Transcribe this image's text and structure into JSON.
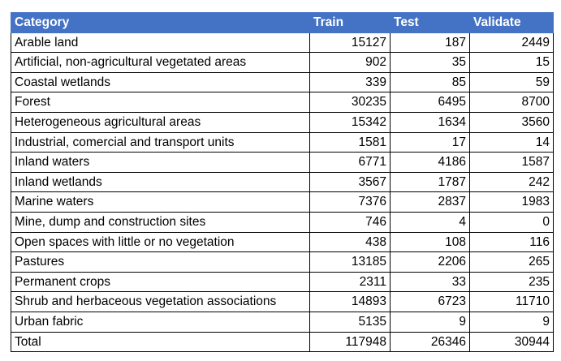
{
  "table": {
    "headers": [
      "Category",
      "Train",
      "Test",
      "Validate"
    ],
    "rows": [
      [
        "Arable land",
        "15127",
        "187",
        "2449"
      ],
      [
        "Artificial, non-agricultural vegetated areas",
        "902",
        "35",
        "15"
      ],
      [
        "Coastal wetlands",
        "339",
        "85",
        "59"
      ],
      [
        "Forest",
        "30235",
        "6495",
        "8700"
      ],
      [
        "Heterogeneous agricultural areas",
        "15342",
        "1634",
        "3560"
      ],
      [
        "Industrial, comercial and transport units",
        "1581",
        "17",
        "14"
      ],
      [
        "Inland waters",
        "6771",
        "4186",
        "1587"
      ],
      [
        "Inland wetlands",
        "3567",
        "1787",
        "242"
      ],
      [
        "Marine waters",
        "7376",
        "2837",
        "1983"
      ],
      [
        "Mine, dump and construction sites",
        "746",
        "4",
        "0"
      ],
      [
        "Open spaces with little or no vegetation",
        "438",
        "108",
        "116"
      ],
      [
        "Pastures",
        "13185",
        "2206",
        "265"
      ],
      [
        "Permanent crops",
        "2311",
        "33",
        "235"
      ],
      [
        "Shrub and herbaceous vegetation associations",
        "14893",
        "6723",
        "11710"
      ],
      [
        "Urban fabric",
        "5135",
        "9",
        "9"
      ],
      [
        "Total",
        "117948",
        "26346",
        "30944"
      ]
    ]
  },
  "colors": {
    "header_background": "#4472c4",
    "header_text": "#ffffff",
    "border": "#000000"
  }
}
